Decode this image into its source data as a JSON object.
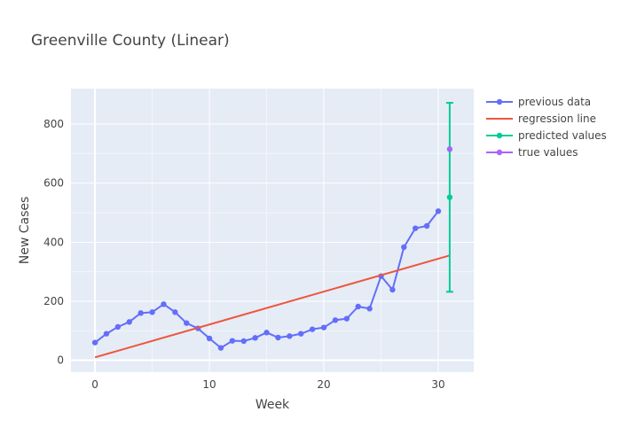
{
  "chart_data": {
    "type": "line",
    "title": "Greenville County (Linear)",
    "xlabel": "Week",
    "ylabel": "New Cases",
    "xlim": [
      -2.1,
      33.1
    ],
    "ylim": [
      -40,
      920
    ],
    "x_ticks": [
      0,
      10,
      20,
      30
    ],
    "y_ticks": [
      0,
      200,
      400,
      600,
      800
    ],
    "grid": true,
    "legend_position": "top-right",
    "series": [
      {
        "name": "previous data",
        "color": "#636efa",
        "mode": "lines+markers",
        "x": [
          0,
          1,
          2,
          3,
          4,
          5,
          6,
          7,
          8,
          9,
          10,
          11,
          12,
          13,
          14,
          15,
          16,
          17,
          18,
          19,
          20,
          21,
          22,
          23,
          24,
          25,
          26,
          27,
          28,
          29,
          30
        ],
        "y": [
          60,
          90,
          113,
          130,
          160,
          163,
          190,
          163,
          126,
          108,
          74,
          42,
          66,
          65,
          76,
          94,
          77,
          82,
          90,
          105,
          111,
          136,
          141,
          182,
          175,
          285,
          239,
          383,
          447,
          455,
          505
        ]
      },
      {
        "name": "regression line",
        "color": "#ef553b",
        "mode": "lines",
        "x": [
          0,
          31
        ],
        "y": [
          10,
          355
        ]
      },
      {
        "name": "predicted values",
        "color": "#00cc96",
        "mode": "markers+errorbar",
        "x": [
          31
        ],
        "y": [
          552
        ],
        "error_low": [
          232
        ],
        "error_high": [
          872
        ]
      },
      {
        "name": "true values",
        "color": "#ab63fa",
        "mode": "markers",
        "x": [
          31
        ],
        "y": [
          715
        ]
      }
    ]
  }
}
